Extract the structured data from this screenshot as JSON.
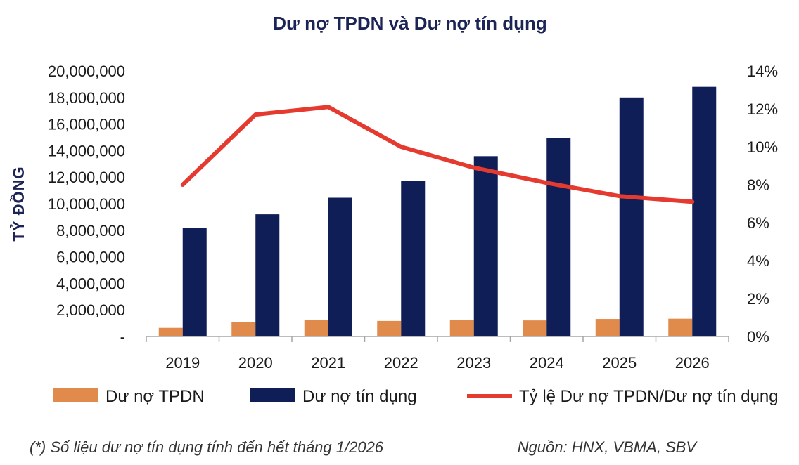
{
  "chart_data": {
    "type": "bar",
    "title": "Dư nợ TPDN và Dư nợ tín dụng",
    "ylabel": "TỶ ĐỒNG",
    "categories": [
      "2019",
      "2020",
      "2021",
      "2022",
      "2023",
      "2024",
      "2025",
      "2026"
    ],
    "ylim": [
      0,
      20000000
    ],
    "y_ticks": [
      "-",
      "2,000,000",
      "4,000,000",
      "6,000,000",
      "8,000,000",
      "10,000,000",
      "12,000,000",
      "14,000,000",
      "16,000,000",
      "18,000,000",
      "20,000,000"
    ],
    "y2lim": [
      0,
      14
    ],
    "y2_ticks": [
      "0%",
      "2%",
      "4%",
      "6%",
      "8%",
      "10%",
      "12%",
      "14%"
    ],
    "series": [
      {
        "name": "Dư nợ TPDN",
        "type": "bar",
        "color": "#e08a4c",
        "values": [
          650000,
          1070000,
          1270000,
          1170000,
          1220000,
          1210000,
          1320000,
          1340000
        ]
      },
      {
        "name": "Dư nợ tín dụng",
        "type": "bar",
        "color": "#0f1e56",
        "values": [
          8200000,
          9200000,
          10450000,
          11700000,
          13580000,
          14970000,
          18000000,
          18800000
        ]
      },
      {
        "name": "Tỷ lệ Dư nợ TPDN/Dư nợ tín dụng",
        "type": "line",
        "axis": "right",
        "color": "#e53a2f",
        "values": [
          8.0,
          11.7,
          12.1,
          10.0,
          8.9,
          8.1,
          7.4,
          7.1
        ]
      }
    ],
    "legend_position": "bottom",
    "grid": false,
    "footnote": "(*) Số liệu dư nợ tín dụng tính đến hết tháng 1/2026",
    "source": "Nguồn: HNX, VBMA, SBV"
  }
}
